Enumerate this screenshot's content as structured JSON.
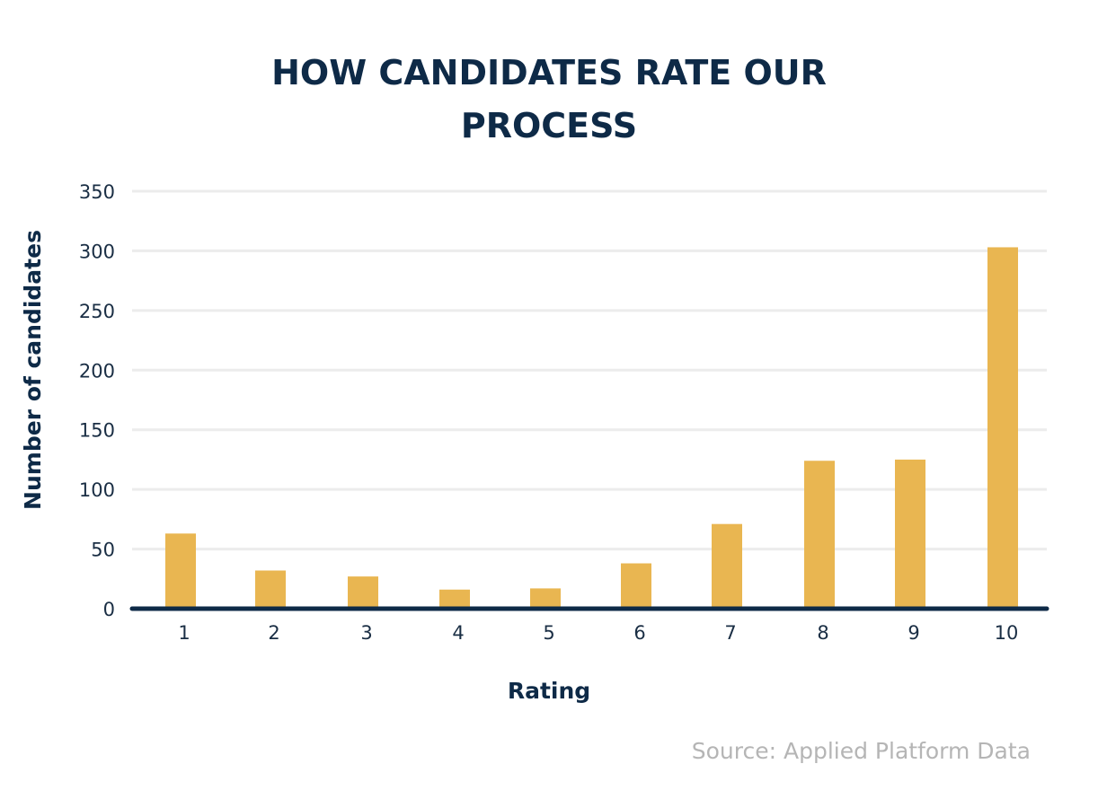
{
  "chart_data": {
    "type": "bar",
    "title": "HOW CANDIDATES RATE OUR PROCESS",
    "title_lines": [
      "HOW CANDIDATES RATE OUR",
      "PROCESS"
    ],
    "xlabel": "Rating",
    "ylabel": "Number of candidates",
    "categories": [
      "1",
      "2",
      "3",
      "4",
      "5",
      "6",
      "7",
      "8",
      "9",
      "10"
    ],
    "values": [
      63,
      32,
      27,
      16,
      17,
      38,
      71,
      124,
      125,
      303
    ],
    "ylim": [
      0,
      350
    ],
    "yticks": [
      0,
      50,
      100,
      150,
      200,
      250,
      300,
      350
    ],
    "grid": true,
    "legend": "none",
    "bar_color": "#e9b651",
    "source": "Source: Applied Platform Data"
  }
}
